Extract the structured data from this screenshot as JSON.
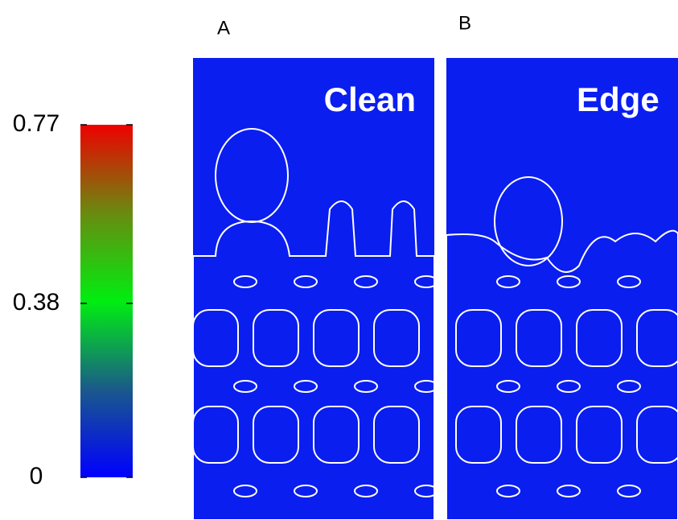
{
  "chart_data": {
    "type": "colormap",
    "colorbar": {
      "lim": [
        0,
        0.77
      ],
      "ticks": [
        0,
        0.38,
        0.77
      ]
    },
    "panels": [
      {
        "label": "A",
        "title": "Clean"
      },
      {
        "label": "B",
        "title": "Edge"
      }
    ]
  }
}
